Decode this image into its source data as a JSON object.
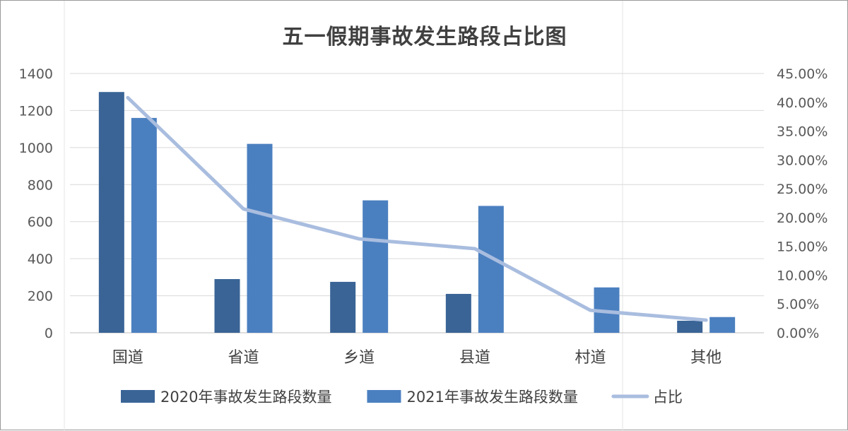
{
  "chart_data": {
    "type": "bar",
    "title": "五一假期事故发生路段占比图",
    "categories": [
      "国道",
      "省道",
      "乡道",
      "县道",
      "村道",
      "其他"
    ],
    "series": [
      {
        "name": "2020年事故发生路段数量",
        "type": "bar",
        "axis": "left",
        "color": "#3a6496",
        "values": [
          1300,
          290,
          275,
          210,
          0,
          65
        ]
      },
      {
        "name": "2021年事故发生路段数量",
        "type": "bar",
        "axis": "left",
        "color": "#4b80c0",
        "values": [
          1160,
          1020,
          715,
          685,
          245,
          85
        ]
      },
      {
        "name": "占比",
        "type": "line",
        "axis": "right",
        "color": "#a9bddf",
        "values": [
          40.8,
          21.5,
          16.3,
          14.6,
          3.9,
          2.2
        ]
      }
    ],
    "y_left": {
      "min": 0,
      "max": 1400,
      "step": 200,
      "ticks": [
        "0",
        "200",
        "400",
        "600",
        "800",
        "1000",
        "1200",
        "1400"
      ]
    },
    "y_right": {
      "min": 0,
      "max": 45,
      "step": 5,
      "ticks": [
        "0.00%",
        "5.00%",
        "10.00%",
        "15.00%",
        "20.00%",
        "25.00%",
        "30.00%",
        "35.00%",
        "40.00%",
        "45.00%"
      ]
    },
    "grid": true,
    "legend_position": "bottom"
  }
}
